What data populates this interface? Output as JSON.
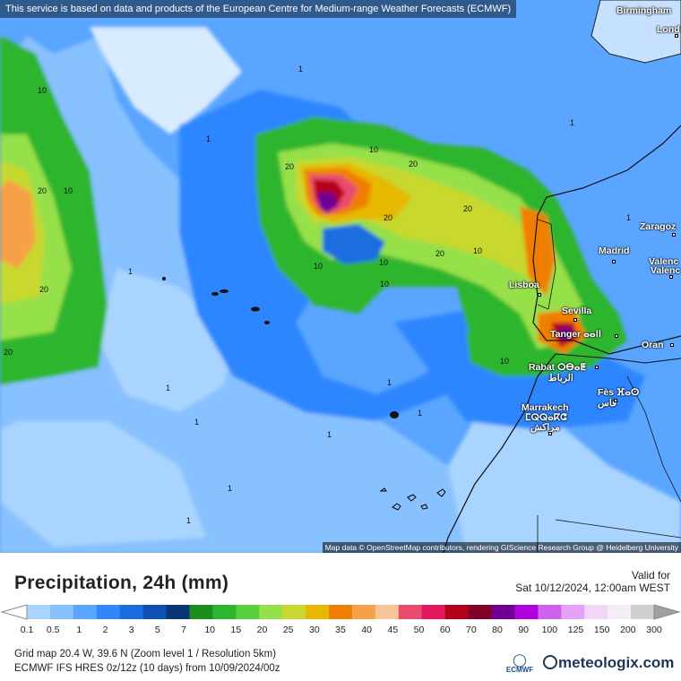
{
  "map": {
    "top_note": "This service is based on data and products of the European Centre for Medium-range Weather Forecasts (ECMWF)",
    "attribution": "Map data © OpenStreetMap contributors, rendering GIScience Research Group @ Heidelberg University",
    "cities": [
      "Birmingham",
      "Lond",
      "Zaragoz",
      "Madrid",
      "Valenc",
      "Valenc",
      "Lisboa",
      "Sevilla",
      "Tanger ⴰⴰⵏⵏ",
      "Oran",
      "Rabat ⵔⴱⴰⵟ",
      "الرباط",
      "Fès ⴼⴰⵙ",
      "فاس",
      "Marrakech",
      "ⵎⵕⵕⴰⴽⵛ",
      "مراكش"
    ],
    "contour_labels": [
      "1",
      "10",
      "20"
    ]
  },
  "panel": {
    "title": "Precipitation, 24h (mm)",
    "valid_label": "Valid for",
    "valid_value": "Sat 10/12/2024, 12:00am WEST",
    "meta_line1": "Grid map 20.4 W, 39.6 N (Zoom level 1 / Resolution 5km)",
    "meta_line2": "ECMWF IFS HRES 0z/12z (10 days) from 10/09/2024/00z",
    "ecmwf_label": "ECMWF",
    "brand": "meteologix.com"
  },
  "legend": {
    "ticks": [
      "0.1",
      "0.5",
      "1",
      "2",
      "3",
      "5",
      "7",
      "10",
      "15",
      "20",
      "25",
      "30",
      "35",
      "40",
      "45",
      "50",
      "60",
      "70",
      "80",
      "90",
      "100",
      "125",
      "150",
      "200",
      "300"
    ],
    "colors": [
      "#a9d4ff",
      "#88c1ff",
      "#5aa5ff",
      "#2f86ff",
      "#1a6de0",
      "#0c4fb5",
      "#0a3379",
      "#1b8f1b",
      "#2db52d",
      "#5ad03a",
      "#96e04a",
      "#c8d82e",
      "#e6b800",
      "#f07f00",
      "#f6a147",
      "#f8c598",
      "#ea4b6c",
      "#e3165d",
      "#b5001a",
      "#800028",
      "#6f0094",
      "#b000e0",
      "#d060f0",
      "#e6a0f5",
      "#f2d5f8",
      "#f3eef5",
      "#cfcfcf"
    ]
  }
}
